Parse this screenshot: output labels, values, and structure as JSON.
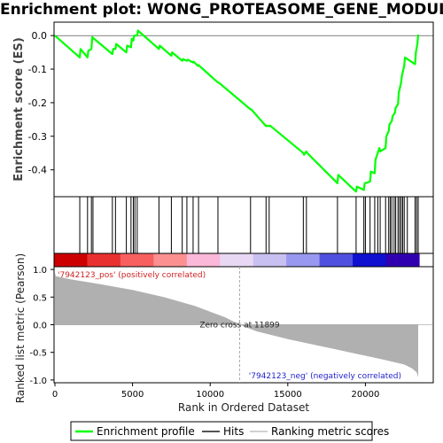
{
  "title": "Enrichment plot: WONG_PROTEASOME_GENE_MODULE",
  "chart_data": [
    {
      "type": "line",
      "name": "enrichment-score-panel",
      "ylabel": "Enrichment score (ES)",
      "ylim": [
        -0.48,
        0.04
      ],
      "yticks": [
        0.0,
        -0.1,
        -0.2,
        -0.3,
        -0.4
      ],
      "ytick_labels": [
        "0.0",
        "-0.1",
        "-0.2",
        "-0.3",
        "-0.4"
      ],
      "xlim": [
        0,
        24000
      ],
      "grid": false,
      "series": [
        {
          "name": "Enrichment profile",
          "color": "#00ff00",
          "x": [
            0,
            1600,
            1650,
            2100,
            2150,
            2350,
            2400,
            3700,
            3750,
            3900,
            3950,
            4600,
            4650,
            4900,
            4950,
            5050,
            5100,
            5300,
            5350,
            6700,
            6750,
            7500,
            7550,
            8200,
            8250,
            8500,
            8550,
            8900,
            8950,
            9200,
            9250,
            10500,
            10550,
            12600,
            12650,
            13600,
            13650,
            13800,
            13850,
            16000,
            16050,
            16200,
            16250,
            18200,
            18250,
            19400,
            19450,
            19900,
            19950,
            20300,
            20350,
            20600,
            20650,
            20900,
            20950,
            21300,
            21350,
            21500,
            21550,
            21700,
            21750,
            21900,
            21950,
            22100,
            22150,
            22300,
            22350,
            22500,
            22550,
            23200,
            23250,
            23350,
            23400
          ],
          "y": [
            0.0,
            -0.065,
            -0.04,
            -0.065,
            -0.045,
            -0.04,
            -0.005,
            -0.055,
            -0.04,
            -0.04,
            -0.025,
            -0.05,
            -0.03,
            -0.035,
            -0.01,
            -0.015,
            0.0,
            0.0,
            0.015,
            -0.04,
            -0.03,
            -0.06,
            -0.05,
            -0.075,
            -0.07,
            -0.075,
            -0.072,
            -0.08,
            -0.078,
            -0.09,
            -0.088,
            -0.14,
            -0.14,
            -0.22,
            -0.22,
            -0.27,
            -0.268,
            -0.27,
            -0.268,
            -0.35,
            -0.355,
            -0.345,
            -0.35,
            -0.44,
            -0.415,
            -0.465,
            -0.45,
            -0.46,
            -0.44,
            -0.435,
            -0.405,
            -0.41,
            -0.37,
            -0.335,
            -0.345,
            -0.335,
            -0.3,
            -0.285,
            -0.265,
            -0.255,
            -0.24,
            -0.23,
            -0.215,
            -0.205,
            -0.17,
            -0.14,
            -0.12,
            -0.09,
            -0.065,
            -0.085,
            -0.05,
            -0.025,
            0.003
          ]
        }
      ]
    },
    {
      "type": "scatter",
      "name": "hits-panel",
      "series": [
        {
          "name": "Hits",
          "color": "#000000",
          "x": [
            1600,
            2100,
            2350,
            2450,
            3700,
            3900,
            4600,
            4900,
            5050,
            5150,
            5300,
            6700,
            7500,
            8200,
            8500,
            8900,
            9250,
            10500,
            12600,
            13600,
            13800,
            16000,
            16200,
            18200,
            19400,
            19900,
            20000,
            20300,
            20600,
            20800,
            20950,
            21300,
            21500,
            21600,
            21700,
            21850,
            21950,
            22100,
            22200,
            22300,
            22400,
            22500,
            22700,
            23200,
            23300,
            23400
          ]
        }
      ]
    },
    {
      "type": "heatmap",
      "name": "ranking-color-bar",
      "colors": [
        "#cc0000",
        "#e83030",
        "#f86060",
        "#fc9090",
        "#fcb8d8",
        "#e8d8f4",
        "#c8c0f0",
        "#9898f0",
        "#5050e0",
        "#1010d0",
        "#3000b0"
      ]
    },
    {
      "type": "area",
      "name": "ranked-list-panel",
      "xlabel": "Rank in Ordered Dataset",
      "ylabel": "Ranked list metric (Pearson)",
      "ylim": [
        -1.05,
        1.05
      ],
      "yticks": [
        1.0,
        0.5,
        0.0,
        -0.5,
        -1.0
      ],
      "ytick_labels": [
        "1.0",
        "0.5",
        "0.0",
        "-0.5",
        "-1.0"
      ],
      "xticks": [
        0,
        5000,
        10000,
        15000,
        20000
      ],
      "xtick_labels": [
        "0",
        "5000",
        "10000",
        "15000",
        "20000"
      ],
      "xlim": [
        0,
        24000
      ],
      "zero_cross": 11899,
      "fill_color": "#b0b0b0",
      "series": [
        {
          "name": "Ranking metric scores",
          "x": [
            0,
            50,
            1000,
            3000,
            5000,
            7000,
            9000,
            11000,
            11899,
            13000,
            15000,
            17000,
            19000,
            21000,
            22500,
            23000,
            23300,
            23400
          ],
          "y": [
            0.95,
            0.88,
            0.82,
            0.73,
            0.63,
            0.5,
            0.34,
            0.13,
            0.0,
            -0.12,
            -0.26,
            -0.38,
            -0.5,
            -0.62,
            -0.72,
            -0.79,
            -0.86,
            -0.95
          ]
        }
      ],
      "annotations": {
        "pos_label": "'7942123_pos' (positively correlated)",
        "neg_label": "'7942123_neg' (negatively correlated)",
        "zero_label": "Zero cross at 11899"
      }
    }
  ],
  "legend": {
    "placement": "bottom",
    "items": [
      {
        "label": "Enrichment profile",
        "color": "#00ff00"
      },
      {
        "label": "Hits",
        "color": "#555555"
      },
      {
        "label": "Ranking metric scores",
        "color": "#d0d0d0"
      }
    ]
  }
}
